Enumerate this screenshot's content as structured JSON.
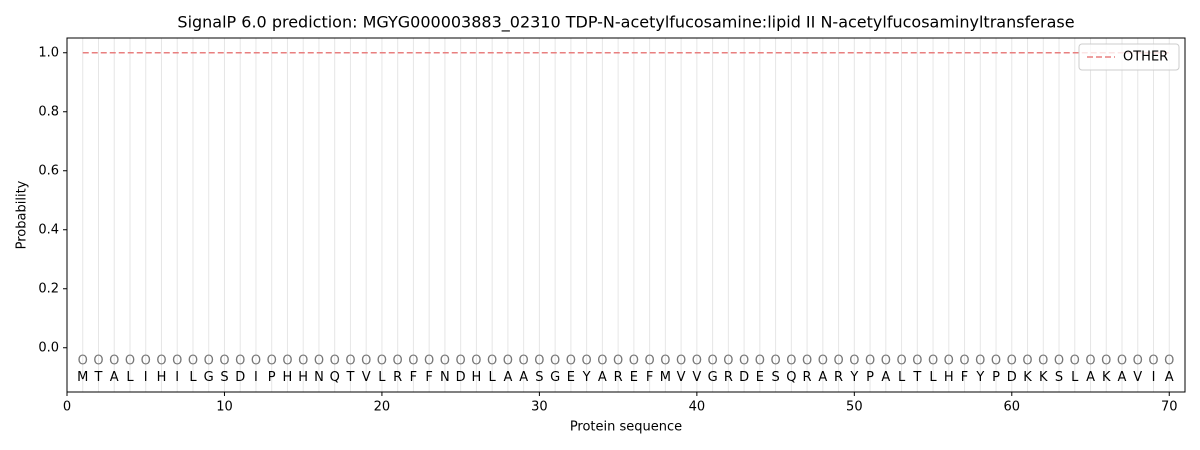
{
  "chart_data": {
    "type": "line",
    "title": "SignalP 6.0 prediction: MGYG000003883_02310 TDP-N-acetylfucosamine:lipid II N-acetylfucosaminyltransferase",
    "xlabel": "Protein sequence",
    "ylabel": "Probability",
    "x": [
      1,
      2,
      3,
      4,
      5,
      6,
      7,
      8,
      9,
      10,
      11,
      12,
      13,
      14,
      15,
      16,
      17,
      18,
      19,
      20,
      21,
      22,
      23,
      24,
      25,
      26,
      27,
      28,
      29,
      30,
      31,
      32,
      33,
      34,
      35,
      36,
      37,
      38,
      39,
      40,
      41,
      42,
      43,
      44,
      45,
      46,
      47,
      48,
      49,
      50,
      51,
      52,
      53,
      54,
      55,
      56,
      57,
      58,
      59,
      60,
      61,
      62,
      63,
      64,
      65,
      66,
      67,
      68,
      69,
      70
    ],
    "residues": [
      "M",
      "T",
      "A",
      "L",
      "I",
      "H",
      "I",
      "L",
      "G",
      "S",
      "D",
      "I",
      "P",
      "H",
      "H",
      "N",
      "Q",
      "T",
      "V",
      "L",
      "R",
      "F",
      "F",
      "N",
      "D",
      "H",
      "L",
      "A",
      "A",
      "S",
      "G",
      "E",
      "Y",
      "A",
      "R",
      "E",
      "F",
      "M",
      "V",
      "V",
      "G",
      "R",
      "D",
      "E",
      "S",
      "Q",
      "R",
      "A",
      "R",
      "Y",
      "P",
      "A",
      "L",
      "T",
      "L",
      "H",
      "F",
      "Y",
      "P",
      "D",
      "K",
      "K",
      "S",
      "L",
      "A",
      "K",
      "A",
      "V",
      "I",
      "A"
    ],
    "predicted_labels": [
      "O",
      "O",
      "O",
      "O",
      "O",
      "O",
      "O",
      "O",
      "O",
      "O",
      "O",
      "O",
      "O",
      "O",
      "O",
      "O",
      "O",
      "O",
      "O",
      "O",
      "O",
      "O",
      "O",
      "O",
      "O",
      "O",
      "O",
      "O",
      "O",
      "O",
      "O",
      "O",
      "O",
      "O",
      "O",
      "O",
      "O",
      "O",
      "O",
      "O",
      "O",
      "O",
      "O",
      "O",
      "O",
      "O",
      "O",
      "O",
      "O",
      "O",
      "O",
      "O",
      "O",
      "O",
      "O",
      "O",
      "O",
      "O",
      "O",
      "O",
      "O",
      "O",
      "O",
      "O",
      "O",
      "O",
      "O",
      "O",
      "O",
      "O"
    ],
    "series": [
      {
        "name": "OTHER",
        "color": "#e87f7f",
        "dash": true,
        "values": [
          1,
          1,
          1,
          1,
          1,
          1,
          1,
          1,
          1,
          1,
          1,
          1,
          1,
          1,
          1,
          1,
          1,
          1,
          1,
          1,
          1,
          1,
          1,
          1,
          1,
          1,
          1,
          1,
          1,
          1,
          1,
          1,
          1,
          1,
          1,
          1,
          1,
          1,
          1,
          1,
          1,
          1,
          1,
          1,
          1,
          1,
          1,
          1,
          1,
          1,
          1,
          1,
          1,
          1,
          1,
          1,
          1,
          1,
          1,
          1,
          1,
          1,
          1,
          1,
          1,
          1,
          1,
          1,
          1,
          1
        ]
      }
    ],
    "xlim": [
      0,
      71
    ],
    "ylim": [
      -0.15,
      1.05
    ],
    "xticks": [
      0,
      10,
      20,
      30,
      40,
      50,
      60,
      70
    ],
    "yticks": [
      {
        "value": 0,
        "label": "0.0"
      },
      0.2,
      0.4,
      0.6,
      0.8,
      {
        "value": 1,
        "label": "1.0"
      }
    ],
    "legend": "upper right"
  }
}
